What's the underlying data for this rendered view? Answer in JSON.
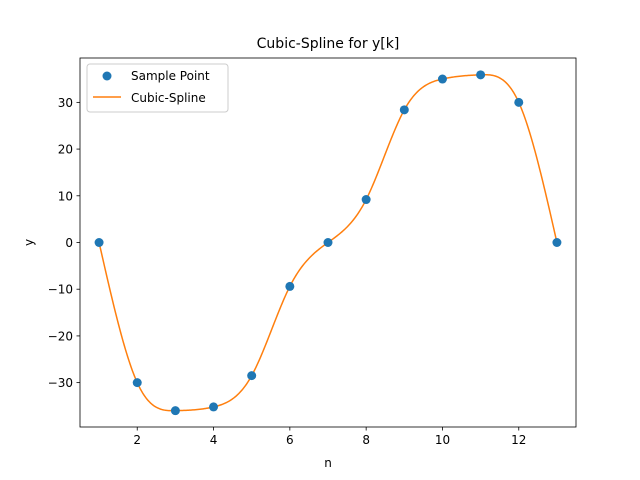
{
  "chart_data": {
    "type": "line",
    "title": "Cubic-Spline for y[k]",
    "xlabel": "n",
    "ylabel": "y",
    "xlim": [
      0.5,
      13.5
    ],
    "ylim": [
      -39.5,
      39.5
    ],
    "xticks": [
      2,
      4,
      6,
      8,
      10,
      12
    ],
    "xtick_labels": [
      "2",
      "4",
      "6",
      "8",
      "10",
      "12"
    ],
    "yticks": [
      -30,
      -20,
      -10,
      0,
      10,
      20,
      30
    ],
    "ytick_labels": [
      "−30",
      "−20",
      "−10",
      "0",
      "10",
      "20",
      "30"
    ],
    "grid": false,
    "legend": {
      "placement": "upper-left",
      "entries": [
        {
          "label": "Sample Point",
          "kind": "marker"
        },
        {
          "label": "Cubic-Spline",
          "kind": "line"
        }
      ]
    },
    "series": [
      {
        "name": "Sample Point",
        "kind": "scatter",
        "color": "#1f77b4",
        "x": [
          1,
          2,
          3,
          4,
          5,
          6,
          7,
          8,
          9,
          10,
          11,
          12,
          13
        ],
        "y": [
          0,
          -30,
          -36,
          -35.2,
          -28.5,
          -9.4,
          0,
          9.2,
          28.4,
          35,
          35.9,
          30,
          0
        ]
      },
      {
        "name": "Cubic-Spline",
        "kind": "line",
        "color": "#ff7f0e",
        "interpolation": "natural-cubic-spline",
        "x": [
          1,
          2,
          3,
          4,
          5,
          6,
          7,
          8,
          9,
          10,
          11,
          12,
          13
        ],
        "y": [
          0,
          -30,
          -36,
          -35.2,
          -28.5,
          -9.4,
          0,
          9.2,
          28.4,
          35,
          35.9,
          30,
          0
        ]
      }
    ]
  }
}
